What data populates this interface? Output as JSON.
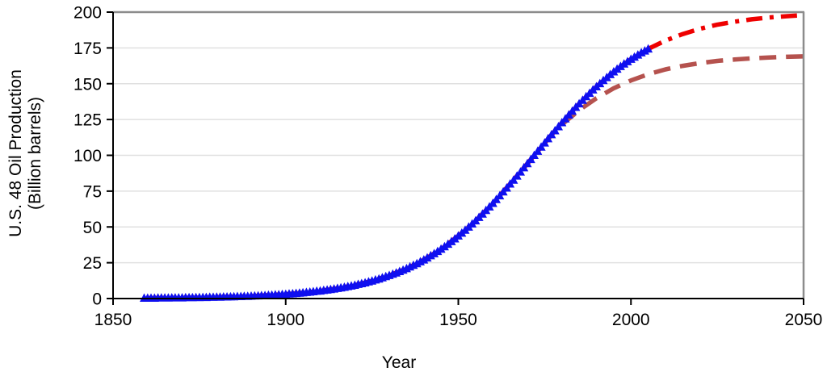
{
  "chart_data": {
    "type": "line",
    "title": "",
    "xlabel": "Year",
    "ylabel": "U.S. 48 Oil Production (Billion barrels)",
    "ylabel_line1": "U.S. 48 Oil Production",
    "ylabel_line2": "(Billion barrels)",
    "xlim": [
      1850,
      2050
    ],
    "ylim": [
      0,
      200
    ],
    "x_ticks": [
      1850,
      1900,
      1950,
      2000,
      2050
    ],
    "y_ticks": [
      0,
      25,
      50,
      75,
      100,
      125,
      150,
      175,
      200
    ],
    "grid": "horizontal",
    "legend_position": "none",
    "colors": {
      "data_markers": "#0f0ff0",
      "projection_high": "#ee0000",
      "projection_low": "#b5524e",
      "gridline": "#e0e0e0",
      "frame_gray": "#8c8c8c",
      "axis_black": "#000000"
    },
    "series": [
      {
        "id": "observed-cumulative-production",
        "style": "triangle-markers",
        "color": "#0f0ff0",
        "start_year": 1859,
        "step": 1,
        "values": [
          0.3,
          0.3,
          0.3,
          0.3,
          0.4,
          0.4,
          0.4,
          0.4,
          0.5,
          0.5,
          0.5,
          0.5,
          0.6,
          0.6,
          0.6,
          0.7,
          0.7,
          0.8,
          0.8,
          0.9,
          0.9,
          1.0,
          1.0,
          1.1,
          1.1,
          1.2,
          1.3,
          1.4,
          1.4,
          1.5,
          1.6,
          1.7,
          1.8,
          1.9,
          2.0,
          2.1,
          2.3,
          2.4,
          2.6,
          2.7,
          2.9,
          3.0,
          3.2,
          3.4,
          3.6,
          3.8,
          4.0,
          4.3,
          4.5,
          4.8,
          5.1,
          5.3,
          5.7,
          6.0,
          6.3,
          6.7,
          7.1,
          7.5,
          7.9,
          8.4,
          8.8,
          9.3,
          9.9,
          10.4,
          11.0,
          11.7,
          12.3,
          13.0,
          13.7,
          14.5,
          15.3,
          16.1,
          17.0,
          17.9,
          18.9,
          19.9,
          20.9,
          22.1,
          23.2,
          24.4,
          25.7,
          27.0,
          28.4,
          29.9,
          31.3,
          32.9,
          34.5,
          36.2,
          38.0,
          39.8,
          41.7,
          43.7,
          45.7,
          47.7,
          49.9,
          52.1,
          54.3,
          56.7,
          59.0,
          61.5,
          64.0,
          66.5,
          69.1,
          71.8,
          74.5,
          77.2,
          80.0,
          82.7,
          85.6,
          88.4,
          91.3,
          94.2,
          97.1,
          100.0,
          102.9,
          105.8,
          108.7,
          111.6,
          114.4,
          117.2,
          120.0,
          122.8,
          125.5,
          128.2,
          130.9,
          133.5,
          136.0,
          138.5,
          141.0,
          143.3,
          145.7,
          147.9,
          150.1,
          152.3,
          154.3,
          156.4,
          158.3,
          160.2,
          162.0,
          163.8,
          165.4,
          167.1,
          168.6,
          170.1,
          171.6,
          172.9,
          174.3
        ]
      },
      {
        "id": "logistic-projection-high",
        "style": "dash-dot-line",
        "color": "#ee0000",
        "start_year": 1860,
        "step": 5,
        "values": [
          0.3,
          0.4,
          0.5,
          0.7,
          1.0,
          1.3,
          1.7,
          2.3,
          3.0,
          4.0,
          5.3,
          7.1,
          9.3,
          12.3,
          16.1,
          20.9,
          27.0,
          34.5,
          43.7,
          54.3,
          66.5,
          80.0,
          94.2,
          108.7,
          122.8,
          136.0,
          147.9,
          158.3,
          167.1,
          174.3,
          180.1,
          184.7,
          188.4,
          191.2,
          193.3,
          195.0,
          196.2,
          197.1,
          197.9
        ]
      },
      {
        "id": "logistic-projection-low",
        "style": "dashed-line",
        "color": "#b5524e",
        "start_year": 1980,
        "step": 5,
        "values": [
          121.6,
          131.5,
          139.9,
          146.8,
          152.3,
          156.6,
          160.0,
          162.5,
          164.4,
          165.9,
          166.9,
          167.7,
          168.3,
          168.8,
          169.1
        ]
      }
    ]
  }
}
